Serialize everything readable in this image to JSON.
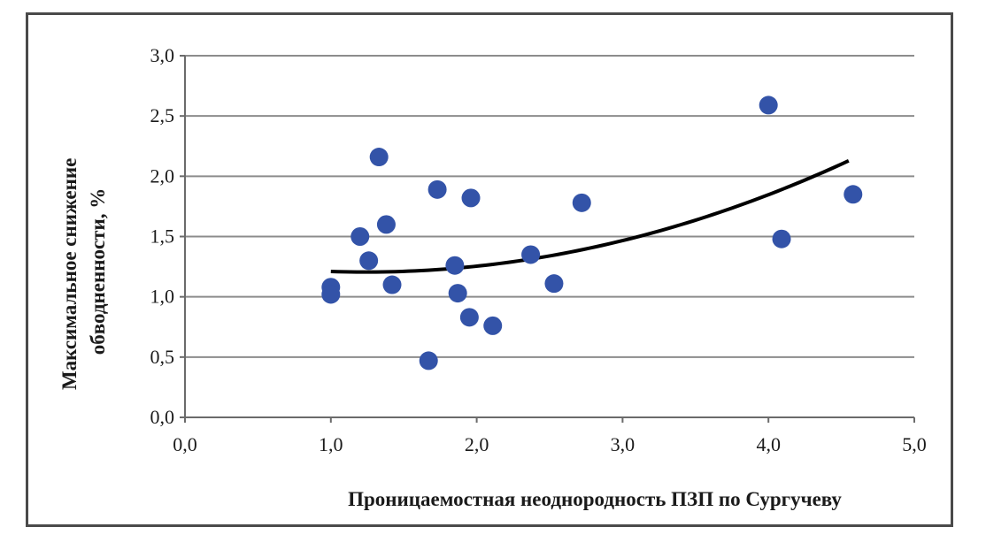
{
  "chart_data": {
    "type": "scatter",
    "title": "",
    "xlabel": "Проницаемостная неоднородность ПЗП по Сургучеву",
    "ylabel_lines": [
      "Максимальное снижение",
      "обводненности, %"
    ],
    "xlim": [
      0,
      5
    ],
    "ylim": [
      0,
      3
    ],
    "x_ticks": [
      0,
      1,
      2,
      3,
      4,
      5
    ],
    "y_ticks": [
      0,
      0.5,
      1,
      1.5,
      2,
      2.5,
      3
    ],
    "x_tick_labels": [
      "0,0",
      "1,0",
      "2,0",
      "3,0",
      "4,0",
      "5,0"
    ],
    "y_tick_labels": [
      "0,0",
      "0,5",
      "1,0",
      "1,5",
      "2,0",
      "2,5",
      "3,0"
    ],
    "grid": "horizontal",
    "legend": "none",
    "colors": {
      "points": "#3353a8",
      "trend": "#000000",
      "grid": "#8c8c8c"
    },
    "series": [
      {
        "points": [
          {
            "x": 1.0,
            "y": 1.08
          },
          {
            "x": 1.0,
            "y": 1.02
          },
          {
            "x": 1.2,
            "y": 1.5
          },
          {
            "x": 1.26,
            "y": 1.3
          },
          {
            "x": 1.33,
            "y": 2.16
          },
          {
            "x": 1.38,
            "y": 1.6
          },
          {
            "x": 1.42,
            "y": 1.1
          },
          {
            "x": 1.67,
            "y": 0.47
          },
          {
            "x": 1.73,
            "y": 1.89
          },
          {
            "x": 1.85,
            "y": 1.26
          },
          {
            "x": 1.87,
            "y": 1.03
          },
          {
            "x": 1.95,
            "y": 0.83
          },
          {
            "x": 1.96,
            "y": 1.82
          },
          {
            "x": 2.11,
            "y": 0.76
          },
          {
            "x": 2.37,
            "y": 1.35
          },
          {
            "x": 2.53,
            "y": 1.11
          },
          {
            "x": 2.72,
            "y": 1.78
          },
          {
            "x": 4.0,
            "y": 2.59
          },
          {
            "x": 4.09,
            "y": 1.48
          },
          {
            "x": 4.58,
            "y": 1.85
          }
        ]
      }
    ],
    "trendline": {
      "type": "polynomial",
      "x_range": [
        1.0,
        4.55
      ],
      "coefficients": [
        1.3347,
        -0.2087,
        0.0842
      ]
    }
  }
}
